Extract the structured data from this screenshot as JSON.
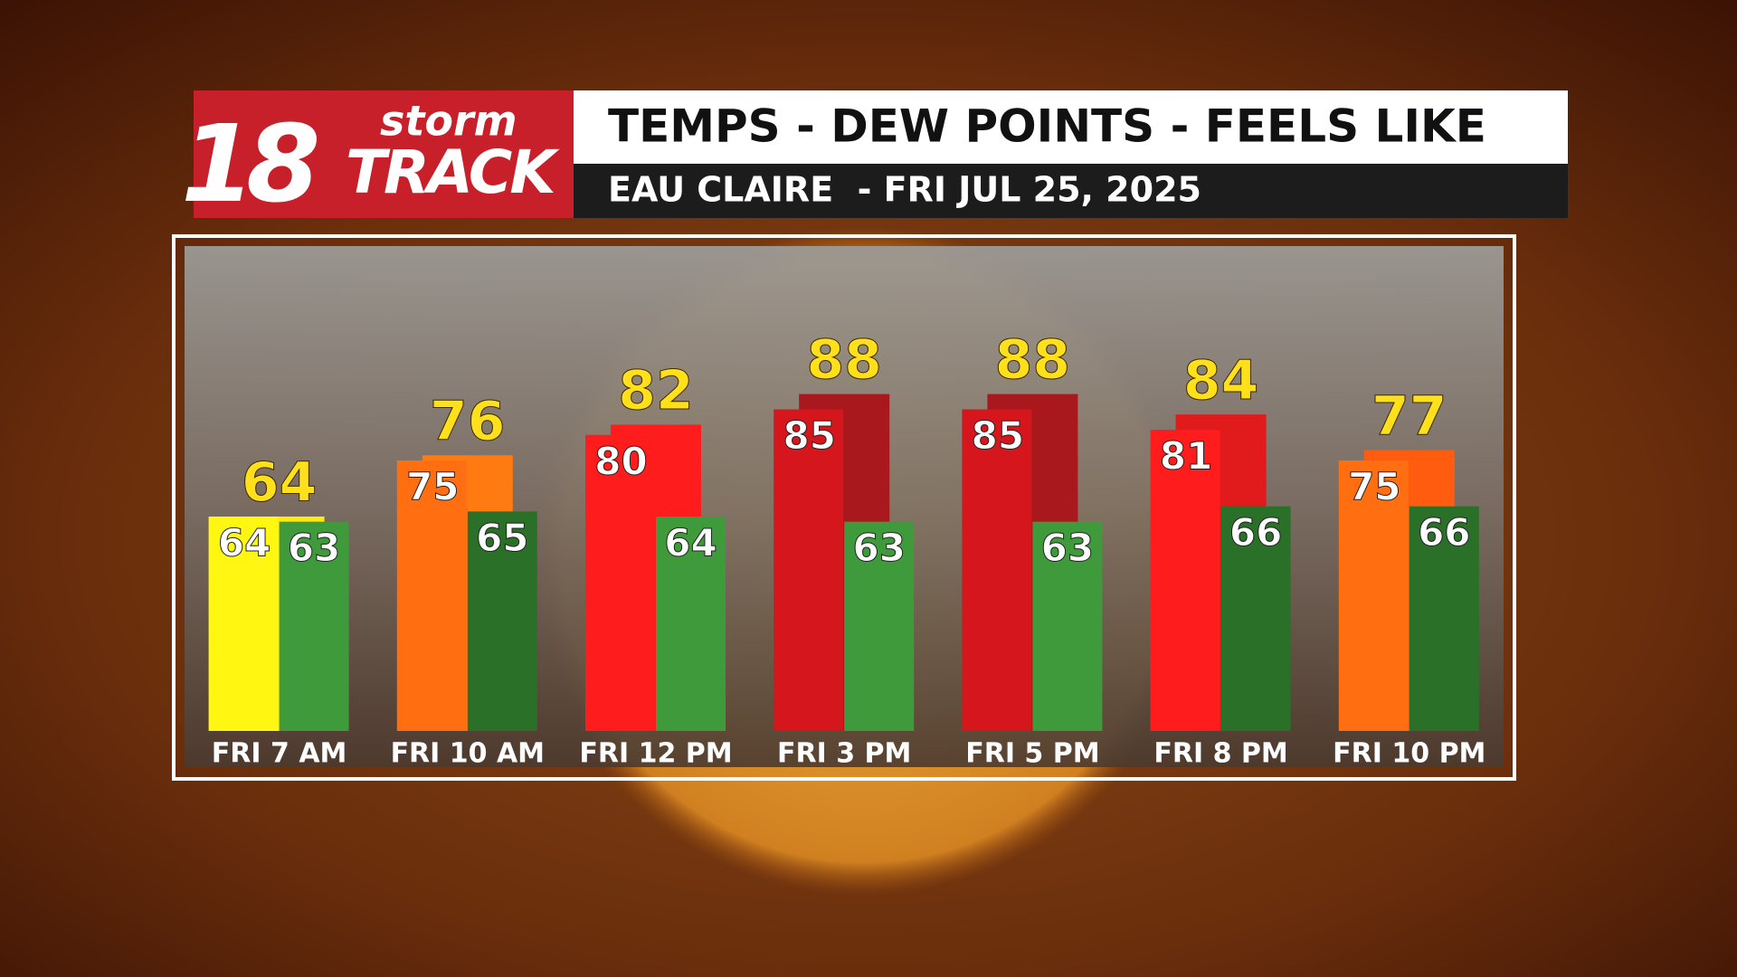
{
  "logo": {
    "number": "18",
    "top": "storm",
    "bottom": "TRACK"
  },
  "chart_data": {
    "type": "bar",
    "title": "TEMPS - DEW POINTS - FEELS LIKE",
    "subtitle": "EAU CLAIRE  - FRI JUL 25, 2025",
    "categories": [
      "FRI 7 AM",
      "FRI 10 AM",
      "FRI 12 PM",
      "FRI 3 PM",
      "FRI 5 PM",
      "FRI 8 PM",
      "FRI 10 PM"
    ],
    "ylim": [
      22,
      117
    ],
    "series": [
      {
        "values": [
          64,
          75,
          80,
          85,
          85,
          81,
          75
        ],
        "colors": [
          "#fff712",
          "#ff6e10",
          "#ff1c1c",
          "#d5171d",
          "#d5171d",
          "#ff1c1c",
          "#ff6e10"
        ]
      },
      {
        "values": [
          63,
          65,
          64,
          63,
          63,
          66,
          66
        ],
        "colors": [
          "#3f9a3b",
          "#2b7029",
          "#3f9a3b",
          "#3f9a3b",
          "#3f9a3b",
          "#2b7029",
          "#2b7029"
        ]
      },
      {
        "values": [
          64,
          76,
          82,
          88,
          88,
          84,
          77
        ],
        "colors": [
          "#ffea10",
          "#ff7a10",
          "#ff1c1c",
          "#a8181d",
          "#a8181d",
          "#e11a1c",
          "#ff5c10"
        ]
      }
    ]
  }
}
